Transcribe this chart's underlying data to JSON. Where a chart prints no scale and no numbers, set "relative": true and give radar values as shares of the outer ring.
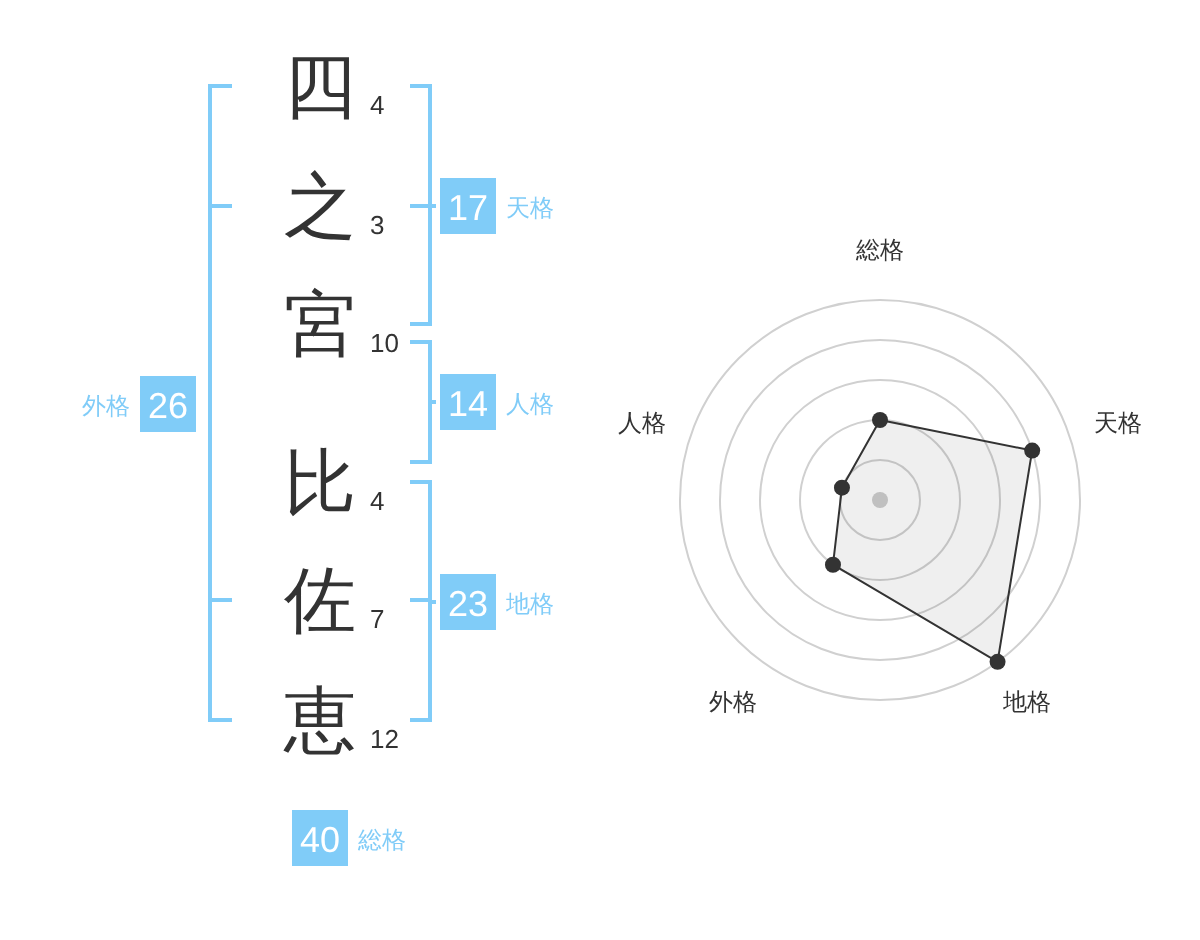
{
  "chart_data": [
    {
      "type": "other",
      "categories": [
        "四",
        "之",
        "宮"
      ],
      "values": [
        4,
        3,
        10
      ],
      "data_labels": true
    },
    {
      "type": "other",
      "categories": [
        "比",
        "佐",
        "恵"
      ],
      "values": [
        4,
        7,
        12
      ],
      "data_labels": true
    },
    {
      "type": "other",
      "categories": [
        "天格",
        "人格",
        "地格",
        "外格",
        "総格"
      ],
      "values": [
        17,
        14,
        23,
        26,
        40
      ],
      "colors": [
        "#80ccf8",
        "#80ccf8",
        "#80ccf8",
        "#80ccf8",
        "#80ccf8"
      ],
      "data_labels": true
    },
    {
      "type": "radar",
      "categories": [
        "総格",
        "天格",
        "地格",
        "外格",
        "人格"
      ],
      "relative": true,
      "series": [
        {
          "color": "#333333",
          "values": [
            0.4,
            0.8,
            1,
            0.4,
            0.2
          ]
        }
      ],
      "grid": true,
      "marker": "circle"
    }
  ]
}
